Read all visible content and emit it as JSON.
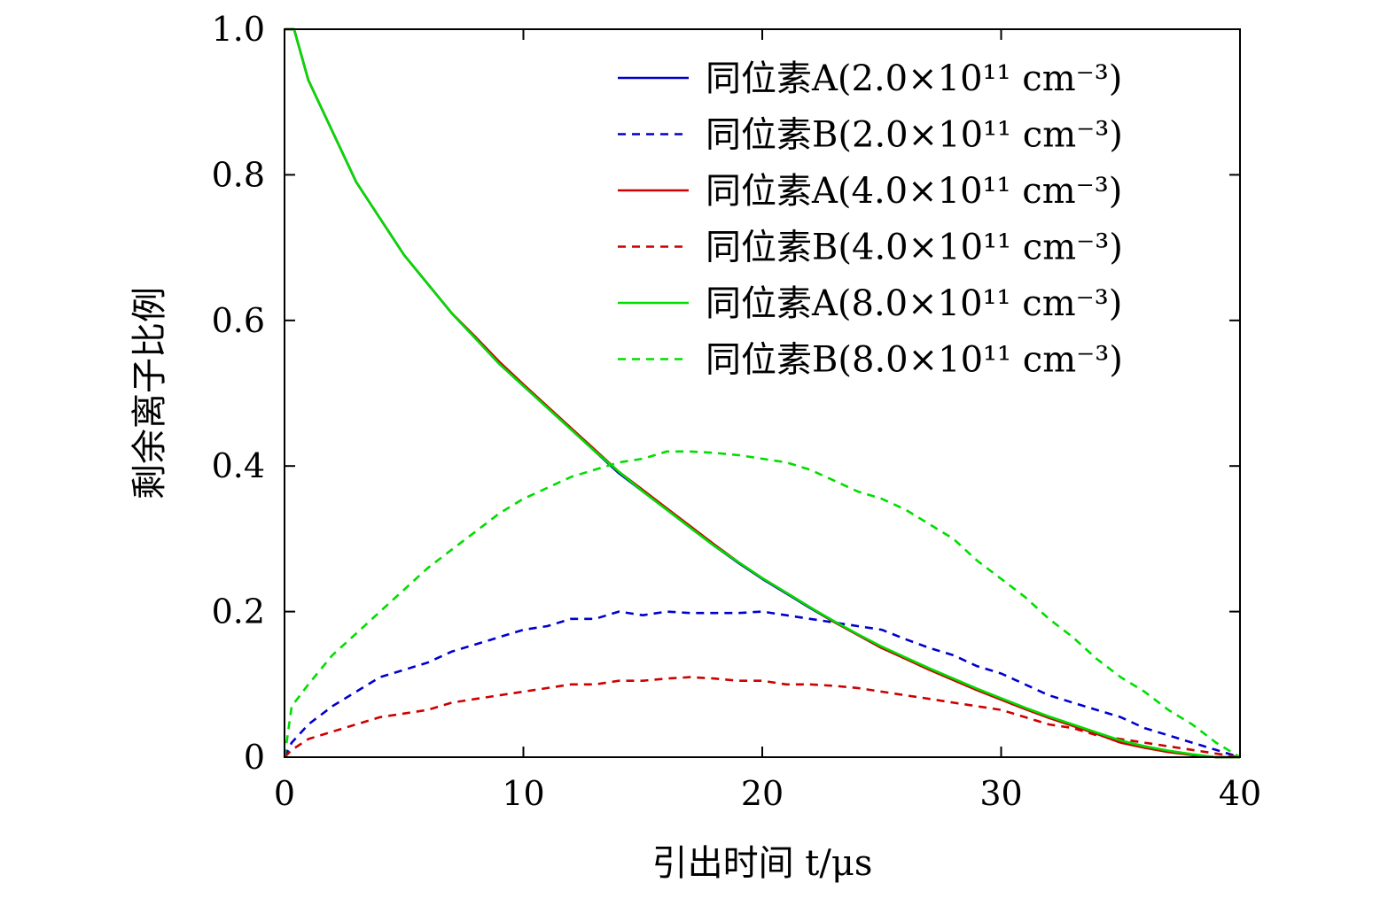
{
  "chart_data": {
    "type": "line",
    "title": "",
    "xlabel": "引出时间 t/μs",
    "ylabel": "剩余离子比例",
    "xlim": [
      0,
      40
    ],
    "ylim": [
      0,
      1.0
    ],
    "xticks": [
      0,
      10,
      20,
      30,
      40
    ],
    "xtick_labels": [
      "0",
      "10",
      "20",
      "30",
      "40"
    ],
    "yticks": [
      0,
      0.2,
      0.4,
      0.6,
      0.8,
      1.0
    ],
    "ytick_labels": [
      "0",
      "0.2",
      "0.4",
      "0.6",
      "0.8",
      "1.0"
    ],
    "grid": false,
    "legend_position": "top-right",
    "series": [
      {
        "name": "同位素A(2.0×10¹¹ cm⁻³)",
        "color": "#0000cc",
        "style": "solid",
        "x": [
          0,
          0.4,
          1,
          2,
          3,
          4,
          5,
          6,
          7,
          8,
          9,
          10,
          11,
          12,
          13,
          14,
          15,
          16,
          17,
          18,
          19,
          20,
          21,
          22,
          23,
          24,
          25,
          26,
          27,
          28,
          29,
          30,
          31,
          32,
          33,
          34,
          35,
          36,
          37,
          38,
          39,
          40
        ],
        "values": [
          1.0,
          1.0,
          0.93,
          0.86,
          0.79,
          0.74,
          0.69,
          0.65,
          0.61,
          0.575,
          0.54,
          0.51,
          0.48,
          0.45,
          0.42,
          0.39,
          0.365,
          0.34,
          0.315,
          0.29,
          0.267,
          0.245,
          0.225,
          0.205,
          0.186,
          0.168,
          0.15,
          0.136,
          0.121,
          0.107,
          0.093,
          0.08,
          0.067,
          0.055,
          0.044,
          0.033,
          0.022,
          0.015,
          0.008,
          0.003,
          0.0,
          0.0
        ]
      },
      {
        "name": "同位素B(2.0×10¹¹ cm⁻³)",
        "color": "#0000cc",
        "style": "dashed",
        "x": [
          0,
          0.3,
          1,
          2,
          3,
          4,
          5,
          6,
          7,
          8,
          9,
          10,
          11,
          12,
          13,
          14,
          15,
          16,
          17,
          18,
          19,
          20,
          21,
          22,
          23,
          24,
          25,
          26,
          27,
          28,
          29,
          30,
          31,
          32,
          33,
          34,
          35,
          36,
          37,
          38,
          39,
          40
        ],
        "values": [
          0.0,
          0.02,
          0.045,
          0.07,
          0.09,
          0.11,
          0.12,
          0.13,
          0.145,
          0.155,
          0.165,
          0.175,
          0.18,
          0.19,
          0.19,
          0.2,
          0.195,
          0.2,
          0.198,
          0.198,
          0.198,
          0.2,
          0.195,
          0.19,
          0.185,
          0.18,
          0.175,
          0.162,
          0.15,
          0.14,
          0.125,
          0.115,
          0.1,
          0.085,
          0.075,
          0.065,
          0.055,
          0.04,
          0.03,
          0.02,
          0.01,
          0.0
        ]
      },
      {
        "name": "同位素A(4.0×10¹¹ cm⁻³)",
        "color": "#cc0000",
        "style": "solid",
        "x": [
          0,
          0.4,
          1,
          2,
          3,
          4,
          5,
          6,
          7,
          8,
          9,
          10,
          11,
          12,
          13,
          14,
          15,
          16,
          17,
          18,
          19,
          20,
          21,
          22,
          23,
          24,
          25,
          26,
          27,
          28,
          29,
          30,
          31,
          32,
          33,
          34,
          35,
          36,
          37,
          38,
          39,
          40
        ],
        "values": [
          1.0,
          1.0,
          0.93,
          0.86,
          0.79,
          0.74,
          0.69,
          0.65,
          0.61,
          0.577,
          0.543,
          0.512,
          0.482,
          0.452,
          0.422,
          0.392,
          0.367,
          0.342,
          0.317,
          0.292,
          0.268,
          0.246,
          0.226,
          0.206,
          0.186,
          0.168,
          0.15,
          0.135,
          0.12,
          0.106,
          0.092,
          0.079,
          0.066,
          0.054,
          0.043,
          0.032,
          0.02,
          0.013,
          0.007,
          0.003,
          0.0,
          0.0
        ]
      },
      {
        "name": "同位素B(4.0×10¹¹ cm⁻³)",
        "color": "#cc0000",
        "style": "dashed",
        "x": [
          0,
          0.3,
          1,
          2,
          3,
          4,
          5,
          6,
          7,
          8,
          9,
          10,
          11,
          12,
          13,
          14,
          15,
          16,
          17,
          18,
          19,
          20,
          21,
          22,
          23,
          24,
          25,
          26,
          27,
          28,
          29,
          30,
          31,
          32,
          33,
          34,
          35,
          36,
          37,
          38,
          39,
          40
        ],
        "values": [
          0.0,
          0.01,
          0.025,
          0.035,
          0.045,
          0.055,
          0.06,
          0.065,
          0.075,
          0.08,
          0.085,
          0.09,
          0.095,
          0.1,
          0.1,
          0.105,
          0.105,
          0.108,
          0.11,
          0.108,
          0.105,
          0.105,
          0.1,
          0.1,
          0.098,
          0.095,
          0.09,
          0.085,
          0.08,
          0.075,
          0.07,
          0.065,
          0.055,
          0.045,
          0.04,
          0.03,
          0.025,
          0.02,
          0.015,
          0.01,
          0.005,
          0.0
        ]
      },
      {
        "name": "同位素A(8.0×10¹¹ cm⁻³)",
        "color": "#00dd00",
        "style": "solid",
        "x": [
          0,
          0.4,
          1,
          2,
          3,
          4,
          5,
          6,
          7,
          8,
          9,
          10,
          11,
          12,
          13,
          14,
          15,
          16,
          17,
          18,
          19,
          20,
          21,
          22,
          23,
          24,
          25,
          26,
          27,
          28,
          29,
          30,
          31,
          32,
          33,
          34,
          35,
          36,
          37,
          38,
          39,
          40
        ],
        "values": [
          1.0,
          1.0,
          0.93,
          0.86,
          0.79,
          0.74,
          0.69,
          0.65,
          0.61,
          0.575,
          0.54,
          0.51,
          0.48,
          0.45,
          0.42,
          0.392,
          0.365,
          0.34,
          0.315,
          0.29,
          0.268,
          0.246,
          0.226,
          0.206,
          0.187,
          0.169,
          0.152,
          0.137,
          0.122,
          0.108,
          0.094,
          0.081,
          0.068,
          0.056,
          0.045,
          0.034,
          0.023,
          0.015,
          0.009,
          0.004,
          0.0,
          0.0
        ]
      },
      {
        "name": "同位素B(8.0×10¹¹ cm⁻³)",
        "color": "#00dd00",
        "style": "dashed",
        "x": [
          0,
          0.3,
          1,
          2,
          3,
          4,
          5,
          6,
          7,
          8,
          9,
          10,
          11,
          12,
          13,
          14,
          15,
          16,
          17,
          18,
          19,
          20,
          21,
          22,
          23,
          24,
          25,
          26,
          27,
          28,
          29,
          30,
          31,
          32,
          33,
          34,
          35,
          36,
          37,
          38,
          39,
          40
        ],
        "values": [
          0.0,
          0.07,
          0.1,
          0.14,
          0.17,
          0.2,
          0.23,
          0.26,
          0.285,
          0.31,
          0.335,
          0.355,
          0.37,
          0.385,
          0.395,
          0.405,
          0.41,
          0.42,
          0.42,
          0.418,
          0.415,
          0.41,
          0.405,
          0.395,
          0.38,
          0.365,
          0.355,
          0.34,
          0.32,
          0.3,
          0.27,
          0.245,
          0.22,
          0.19,
          0.165,
          0.135,
          0.11,
          0.09,
          0.065,
          0.045,
          0.02,
          0.0
        ]
      }
    ]
  }
}
